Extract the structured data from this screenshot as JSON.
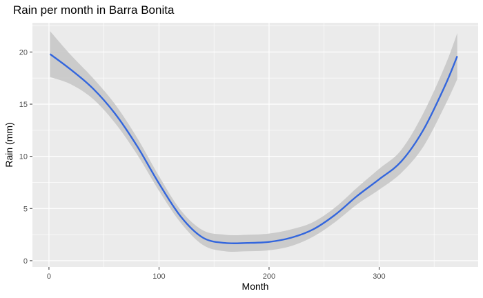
{
  "chart_data": {
    "type": "line",
    "title": "Rain per month in Barra Bonita",
    "xlabel": "Month",
    "ylabel": "Rain (mm)",
    "xlim": [
      -15,
      390
    ],
    "ylim": [
      -0.6,
      22.8
    ],
    "x_ticks": [
      0,
      100,
      200,
      300
    ],
    "y_ticks": [
      0,
      5,
      10,
      15,
      20
    ],
    "grid": true,
    "legend": "none",
    "colors": {
      "line": "#3366dd",
      "band": "#c9c9c9",
      "panel": "#ebebeb",
      "grid": "#ffffff"
    },
    "series": [
      {
        "x": [
          1,
          20,
          40,
          60,
          80,
          100,
          120,
          140,
          160,
          180,
          200,
          220,
          240,
          260,
          280,
          300,
          320,
          340,
          360,
          371
        ],
        "y": [
          19.8,
          18.3,
          16.5,
          14.1,
          11.0,
          7.4,
          4.2,
          2.2,
          1.7,
          1.7,
          1.8,
          2.2,
          3.0,
          4.4,
          6.2,
          7.8,
          9.5,
          12.5,
          16.8,
          19.6
        ],
        "lower": [
          17.6,
          16.9,
          15.5,
          13.2,
          10.2,
          6.7,
          3.6,
          1.5,
          0.9,
          0.9,
          1.0,
          1.4,
          2.3,
          3.7,
          5.4,
          6.8,
          8.4,
          10.9,
          14.9,
          17.4
        ],
        "upper": [
          22.0,
          19.7,
          17.5,
          15.0,
          11.8,
          8.1,
          4.8,
          2.9,
          2.5,
          2.5,
          2.6,
          3.0,
          3.7,
          5.1,
          7.0,
          8.8,
          10.6,
          14.1,
          18.7,
          21.8
        ]
      }
    ]
  }
}
